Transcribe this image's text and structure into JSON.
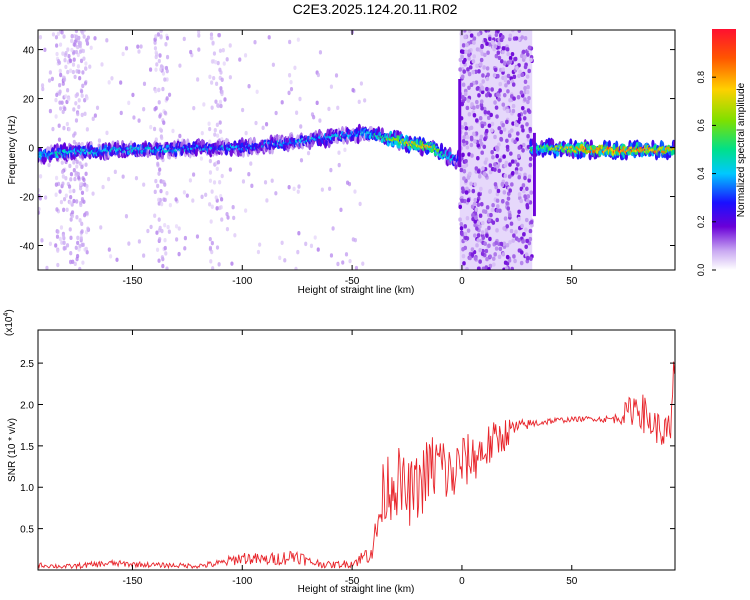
{
  "page": {
    "title": "C2E3.2025.124.20.11.R02"
  },
  "colors": {
    "snr_line": "#e8252b",
    "axis": "#000000",
    "background": "#ffffff"
  },
  "chart_data": [
    {
      "type": "heatmap",
      "xlabel": "Height of straight line (km)",
      "ylabel": "Frequency (Hz)",
      "xlim": [
        -193,
        97
      ],
      "ylim": [
        -50,
        48
      ],
      "xticks": [
        -150,
        -100,
        -50,
        0,
        50
      ],
      "yticks": [
        -40,
        -20,
        0,
        20,
        40
      ],
      "colorbar": {
        "label": "Normalized spectral amplitude",
        "range": [
          0.0,
          1.0
        ],
        "ticks": [
          "0.0",
          "0.2",
          "0.4",
          "0.6",
          "0.8"
        ],
        "colormap": [
          "#ffffff",
          "#c9a8f2",
          "#6a00d8",
          "#1a10ff",
          "#00c8ff",
          "#00e08a",
          "#7ee000",
          "#ffd000",
          "#ff5500",
          "#ff1030"
        ]
      },
      "ridge": [
        {
          "x": -193,
          "y": -3,
          "amp": 0.45
        },
        {
          "x": -180,
          "y": -2,
          "amp": 0.5
        },
        {
          "x": -160,
          "y": -1,
          "amp": 0.45
        },
        {
          "x": -140,
          "y": -1,
          "amp": 0.45
        },
        {
          "x": -120,
          "y": 0,
          "amp": 0.4
        },
        {
          "x": -100,
          "y": 0,
          "amp": 0.4
        },
        {
          "x": -80,
          "y": 2,
          "amp": 0.4
        },
        {
          "x": -60,
          "y": 4,
          "amp": 0.45
        },
        {
          "x": -45,
          "y": 6,
          "amp": 0.45
        },
        {
          "x": -30,
          "y": 3,
          "amp": 0.7
        },
        {
          "x": -15,
          "y": 0,
          "amp": 0.8
        },
        {
          "x": -3,
          "y": -5,
          "amp": 0.4
        },
        {
          "x": 35,
          "y": 0,
          "amp": 0.6
        },
        {
          "x": 60,
          "y": -1,
          "amp": 0.9
        },
        {
          "x": 97,
          "y": -1,
          "amp": 0.8
        }
      ],
      "noise_band": {
        "from": -1,
        "to": 32
      }
    },
    {
      "type": "line",
      "xlabel": "Height of straight line (km)",
      "ylabel": "SNR (10 * v/v)",
      "y_multiplier": "(x10^4)",
      "xlim": [
        -193,
        97
      ],
      "ylim": [
        0,
        2.9
      ],
      "xticks": [
        -150,
        -100,
        -50,
        0,
        50
      ],
      "yticks": [
        0.5,
        1.0,
        1.5,
        2.0,
        2.5
      ],
      "ytick_labels": [
        "0.5",
        "1.0",
        "1.5",
        "2.0",
        "2.5"
      ],
      "series": [
        {
          "x": [
            -193,
            -180,
            -160,
            -140,
            -120,
            -110,
            -100,
            -90,
            -80,
            -75,
            -70,
            -60,
            -50,
            -45,
            -40,
            -38,
            -35,
            -30,
            -25,
            -20,
            -15,
            -10,
            -5,
            0,
            5,
            10,
            15,
            20,
            25,
            30,
            40,
            50,
            60,
            65,
            70,
            75,
            80,
            85,
            90,
            95,
            97
          ],
          "y": [
            0.06,
            0.04,
            0.08,
            0.06,
            0.05,
            0.08,
            0.15,
            0.12,
            0.15,
            0.18,
            0.1,
            0.06,
            0.08,
            0.15,
            0.3,
            0.6,
            1.0,
            1.1,
            0.9,
            1.0,
            1.2,
            1.3,
            1.1,
            1.3,
            1.35,
            1.45,
            1.55,
            1.65,
            1.72,
            1.76,
            1.8,
            1.82,
            1.83,
            1.82,
            1.83,
            1.9,
            2.0,
            1.8,
            1.7,
            1.6,
            2.6
          ],
          "jitter": [
            0.03,
            0.03,
            0.04,
            0.03,
            0.03,
            0.05,
            0.08,
            0.07,
            0.09,
            0.1,
            0.06,
            0.04,
            0.05,
            0.1,
            0.2,
            0.35,
            0.45,
            0.45,
            0.4,
            0.4,
            0.45,
            0.45,
            0.4,
            0.35,
            0.3,
            0.3,
            0.25,
            0.2,
            0.1,
            0.06,
            0.04,
            0.03,
            0.03,
            0.04,
            0.06,
            0.15,
            0.25,
            0.22,
            0.2,
            0.3,
            0.3
          ]
        }
      ]
    }
  ]
}
